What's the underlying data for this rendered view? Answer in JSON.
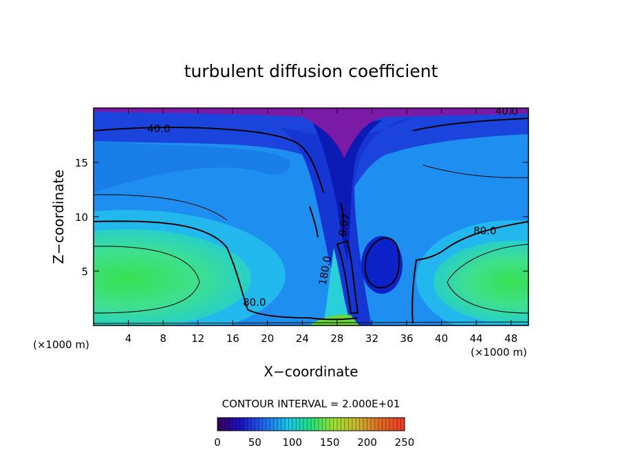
{
  "chart_data": {
    "type": "heatmap",
    "title": "turbulent diffusion coefficient",
    "xlabel": "X−coordinate",
    "ylabel": "Z−coordinate",
    "x_unit_left": "(×1000 m)",
    "x_unit_right": "(×1000 m)",
    "xlim": [
      0,
      50
    ],
    "ylim": [
      0,
      20
    ],
    "x_ticks": [
      4,
      8,
      12,
      16,
      20,
      24,
      28,
      32,
      36,
      40,
      44,
      48
    ],
    "y_ticks": [
      5,
      10,
      15
    ],
    "contour_interval_text": "CONTOUR INTERVAL = 2.000E+01",
    "contour_labels": [
      {
        "text": "40.0",
        "x": 7.5,
        "y": 17.8
      },
      {
        "text": "40.0",
        "x": 47.5,
        "y": 19.4
      },
      {
        "text": "80.0",
        "x": 45.0,
        "y": 8.4
      },
      {
        "text": "80.0",
        "x": 18.5,
        "y": 1.8
      },
      {
        "text": "180.0",
        "x": 27.0,
        "y": 5.0
      },
      {
        "text": "0.07",
        "x": 29.2,
        "y": 9.2
      }
    ],
    "colorbar": {
      "range": [
        0,
        250
      ],
      "ticks": [
        0,
        50,
        100,
        150,
        200,
        250
      ],
      "colors": [
        "#3a0058",
        "#1a10c0",
        "#1f6ff0",
        "#19c8e8",
        "#22e07a",
        "#9be030",
        "#c8b830",
        "#e06a22",
        "#ee3a2a"
      ]
    },
    "colors": {
      "top_layer": "#7a1aa6",
      "upper_band": "#1838d8",
      "background": "#1e90f0",
      "core": "#32e078",
      "column_low": "#0a1ab0"
    }
  }
}
